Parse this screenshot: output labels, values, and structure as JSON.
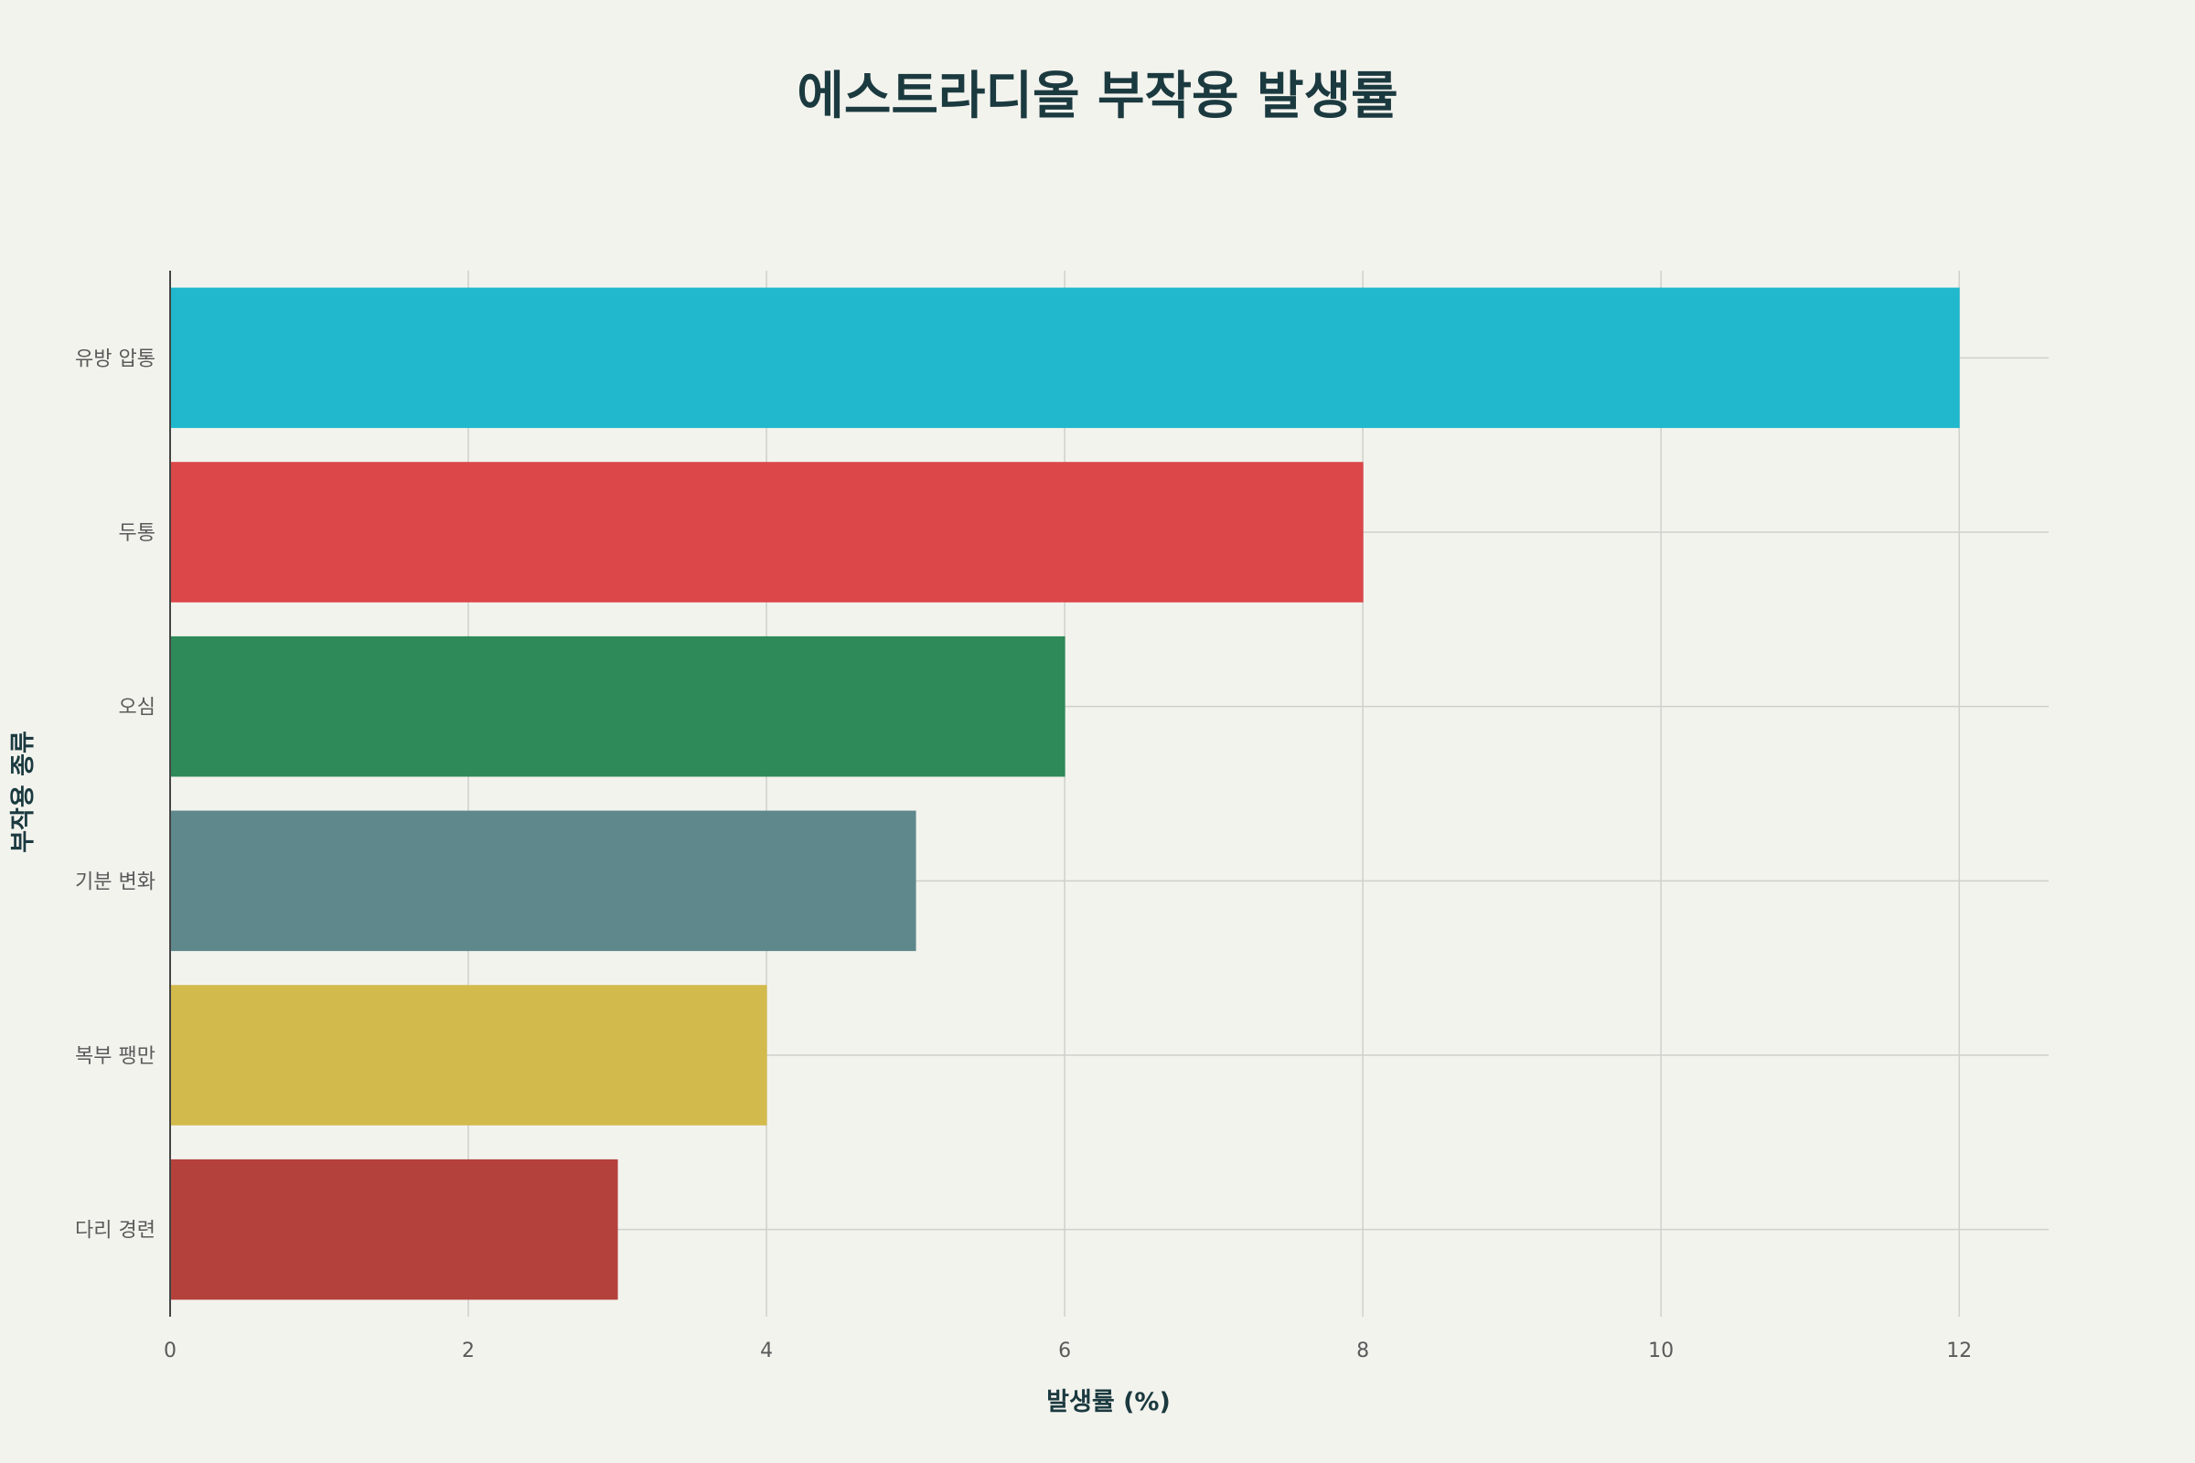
{
  "chart_data": {
    "type": "bar",
    "orientation": "horizontal",
    "title": "에스트라디올 부작용 발생률",
    "xlabel": "발생률 (%)",
    "ylabel": "부작용 종류",
    "categories": [
      "유방 압통",
      "두통",
      "오심",
      "기분 변화",
      "복부 팽만",
      "다리 경련"
    ],
    "values": [
      12,
      8,
      6,
      5,
      4,
      3
    ],
    "colors": [
      "#21b8cd",
      "#dc4749",
      "#2e8a58",
      "#5e888c",
      "#d3ba4c",
      "#b5413d"
    ],
    "xlim": [
      0,
      12.6
    ],
    "xticks": [
      0,
      2,
      4,
      6,
      8,
      10,
      12
    ],
    "grid": true,
    "legend": "none"
  }
}
